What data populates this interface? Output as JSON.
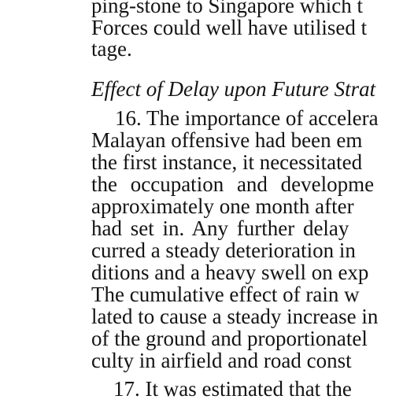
{
  "document": {
    "lines_top": [
      "ping-stone to Singapore which t",
      "Forces could well have utilised t",
      "tage."
    ],
    "section_heading": "Effect of Delay upon Future Strat",
    "paragraph_16": [
      "16. The importance of accelera",
      "Malayan offensive had been em",
      "the first instance, it necessitated",
      "the occupation and developme",
      "approximately one month after",
      "had set in. Any further delay",
      "curred a steady deterioration in",
      "ditions and a heavy swell on exp",
      "The cumulative effect of rain w",
      "lated to cause a steady increase in",
      "of the ground and proportionatel",
      "culty in airfield and road const"
    ],
    "paragraph_17": [
      "17. It was estimated that the"
    ]
  }
}
